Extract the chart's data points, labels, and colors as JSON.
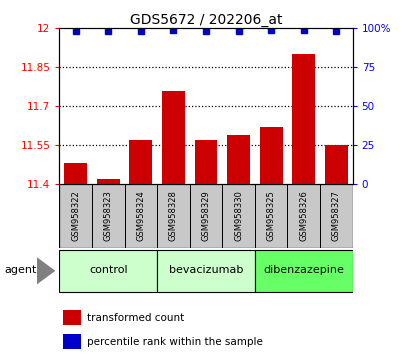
{
  "title": "GDS5672 / 202206_at",
  "samples": [
    "GSM958322",
    "GSM958323",
    "GSM958324",
    "GSM958328",
    "GSM958329",
    "GSM958330",
    "GSM958325",
    "GSM958326",
    "GSM958327"
  ],
  "bar_values": [
    11.48,
    11.42,
    11.57,
    11.76,
    11.57,
    11.59,
    11.62,
    11.9,
    11.55
  ],
  "percentile_values": [
    98,
    98,
    98,
    99,
    98,
    98,
    99,
    99,
    98
  ],
  "bar_color": "#cc0000",
  "dot_color": "#0000cc",
  "ylim_left": [
    11.4,
    12.0
  ],
  "ylim_right": [
    0,
    100
  ],
  "yticks_left": [
    11.4,
    11.55,
    11.7,
    11.85,
    12.0
  ],
  "ytick_labels_left": [
    "11.4",
    "11.55",
    "11.7",
    "11.85",
    "12"
  ],
  "yticks_right": [
    0,
    25,
    50,
    75,
    100
  ],
  "ytick_labels_right": [
    "0",
    "25",
    "50",
    "75",
    "100%"
  ],
  "groups": [
    {
      "label": "control",
      "indices": [
        0,
        1,
        2
      ],
      "color": "#ccffcc"
    },
    {
      "label": "bevacizumab",
      "indices": [
        3,
        4,
        5
      ],
      "color": "#ccffcc"
    },
    {
      "label": "dibenzazepine",
      "indices": [
        6,
        7,
        8
      ],
      "color": "#66ff66"
    }
  ],
  "agent_label": "agent",
  "legend_bar_label": "transformed count",
  "legend_dot_label": "percentile rank within the sample",
  "background_color": "#ffffff",
  "label_area_color": "#c8c8c8",
  "bar_width": 0.7,
  "gridline_values": [
    11.55,
    11.7,
    11.85
  ],
  "gridline_color": "#000000"
}
